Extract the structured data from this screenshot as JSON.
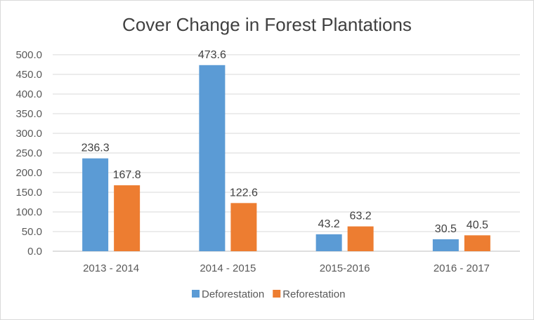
{
  "chart_data": {
    "type": "bar",
    "title": "Cover Change in Forest Plantations",
    "xlabel": "",
    "ylabel": "",
    "categories": [
      "2013 - 2014",
      "2014 - 2015",
      "2015-2016",
      "2016 - 2017"
    ],
    "series": [
      {
        "name": "Deforestation",
        "values": [
          236.3,
          473.6,
          43.2,
          30.5
        ],
        "labels": [
          "236.3",
          "473.6",
          "43.2",
          "30.5"
        ],
        "color": "#5b9bd5"
      },
      {
        "name": "Reforestation",
        "values": [
          167.8,
          122.6,
          63.2,
          40.5
        ],
        "labels": [
          "167.8",
          "122.6",
          "63.2",
          "40.5"
        ],
        "color": "#ed7d31"
      }
    ],
    "ylim": [
      0,
      500
    ],
    "yticks": [
      "0.0",
      "50.0",
      "100.0",
      "150.0",
      "200.0",
      "250.0",
      "300.0",
      "350.0",
      "400.0",
      "450.0",
      "500.0"
    ],
    "grid": true,
    "legend_position": "bottom"
  }
}
